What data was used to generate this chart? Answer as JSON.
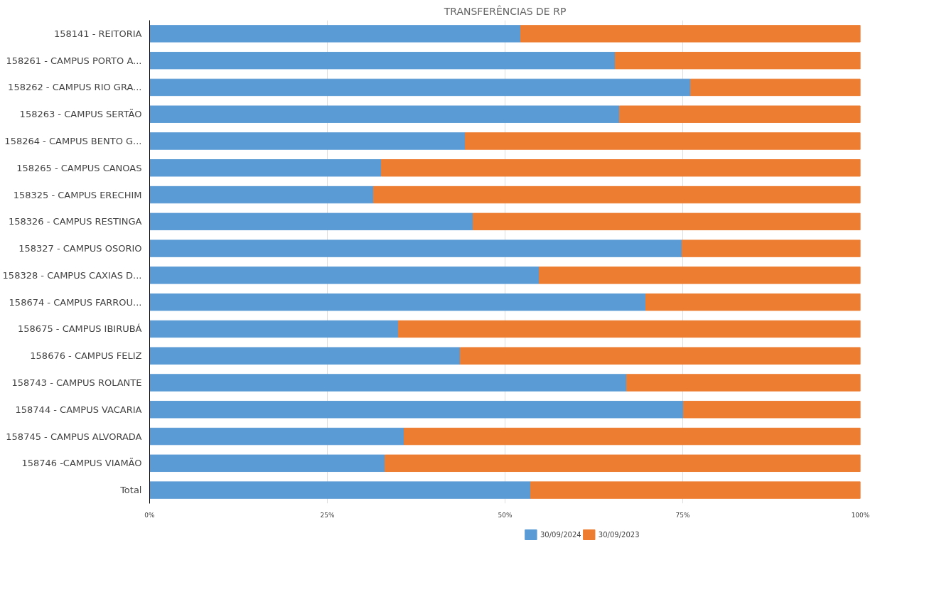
{
  "chart_data": {
    "type": "bar",
    "title": "TRANSFERÊNCIAS DE RP",
    "orientation": "horizontal",
    "stacked": true,
    "categories": [
      "158141 - REITORIA",
      "158261 - CAMPUS PORTO A...",
      "158262 - CAMPUS RIO GRA...",
      "158263 - CAMPUS SERTÃO",
      "158264 - CAMPUS BENTO G...",
      "158265 - CAMPUS CANOAS",
      "158325 - CAMPUS ERECHIM",
      "158326 - CAMPUS RESTINGA",
      "158327 - CAMPUS OSORIO",
      "158328 - CAMPUS CAXIAS D...",
      "158674 - CAMPUS FARROU...",
      "158675 - CAMPUS IBIRUBÁ",
      "158676 - CAMPUS FELIZ",
      "158743 - CAMPUS ROLANTE",
      "158744 - CAMPUS VACARIA",
      "158745 - CAMPUS ALVORADA",
      "158746 -CAMPUS VIAMÃO",
      "Total"
    ],
    "series": [
      {
        "name": "30/09/2024",
        "color": "#5b9bd5",
        "values": [
          52.2,
          65.5,
          76.1,
          66.1,
          44.4,
          32.6,
          31.5,
          45.5,
          74.9,
          54.8,
          69.8,
          35.0,
          43.7,
          67.1,
          75.1,
          35.8,
          33.1,
          53.6
        ]
      },
      {
        "name": "30/09/2023",
        "color": "#ed7d31",
        "values": [
          47.8,
          34.5,
          23.9,
          33.9,
          55.6,
          67.4,
          68.5,
          54.5,
          25.1,
          45.2,
          30.2,
          65.0,
          56.3,
          32.9,
          24.9,
          64.2,
          66.9,
          46.4
        ]
      }
    ],
    "xlim": [
      0,
      100
    ],
    "xticks": [
      {
        "value": 0,
        "label": "0%"
      },
      {
        "value": 25,
        "label": "25%"
      },
      {
        "value": 50,
        "label": "50%"
      },
      {
        "value": 75,
        "label": "75%"
      },
      {
        "value": 100,
        "label": "100%"
      }
    ],
    "grid": "x",
    "legend": "bottom"
  }
}
